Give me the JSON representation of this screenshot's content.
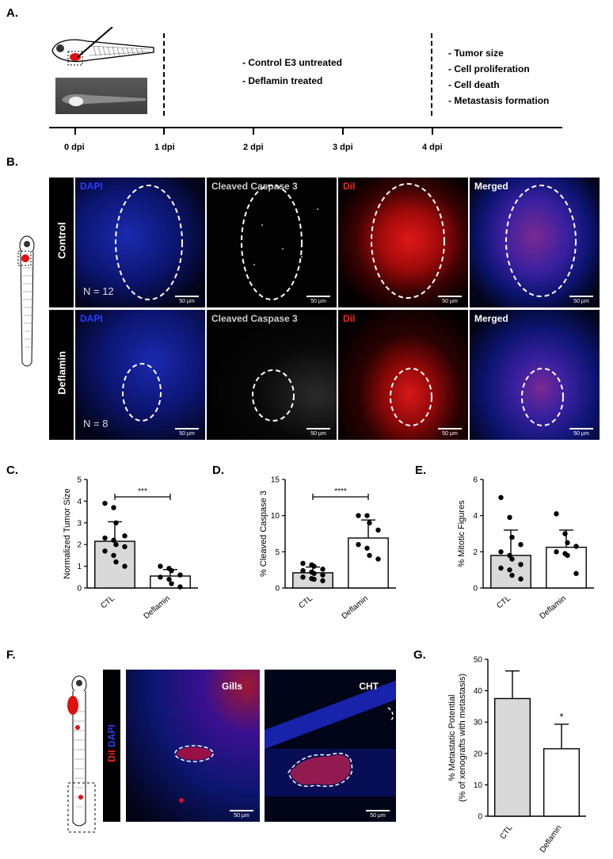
{
  "panels": {
    "A": "A.",
    "B": "B.",
    "C": "C.",
    "D": "D.",
    "E": "E.",
    "F": "F.",
    "G": "G."
  },
  "timeline": {
    "ticks": [
      "0 dpi",
      "1 dpi",
      "2 dpi",
      "3 dpi",
      "4 dpi"
    ],
    "treatments": [
      "- Control E3 untreated",
      "- Deflamin treated"
    ],
    "readouts": [
      "- Tumor size",
      "- Cell proliferation",
      "- Cell death",
      "- Metastasis formation"
    ]
  },
  "imaging": {
    "columns": [
      "DAPI",
      "Cleaved Caspase 3",
      "DiI",
      "Merged"
    ],
    "column_colors": [
      "#2a3cff",
      "#cccccc",
      "#ff2020",
      "#ffffff"
    ],
    "rows": [
      {
        "label": "Control",
        "n": "N = 12"
      },
      {
        "label": "Deflamin",
        "n": "N = 8"
      }
    ],
    "scale_bar": "50 µm"
  },
  "metastasis_images": {
    "stain_red": "DiI",
    "stain_blue": "DAPI",
    "regions": [
      "Gills",
      "CHT"
    ],
    "scale_bar": "50 µm"
  },
  "chart_data": [
    {
      "type": "bar",
      "panel": "C",
      "categories": [
        "CTL",
        "Deflamin"
      ],
      "values": [
        2.15,
        0.55
      ],
      "errors": [
        0.9,
        0.3
      ],
      "points": [
        [
          3.9,
          3.7,
          3.0,
          2.4,
          2.3,
          2.2,
          2.0,
          1.9,
          1.7,
          1.5,
          1.2,
          1.0
        ],
        [
          1.0,
          0.9,
          0.8,
          0.6,
          0.5,
          0.4,
          0.2,
          0.05
        ]
      ],
      "ylabel": "Normalized Tumor Size",
      "ylim": [
        0,
        5
      ],
      "yticks": [
        "0",
        "1",
        "2",
        "3",
        "4",
        "5"
      ],
      "significance": "***",
      "bar_colors": [
        "#d9d9d9",
        "#ffffff"
      ]
    },
    {
      "type": "bar",
      "panel": "D",
      "categories": [
        "CTL",
        "Deflamin"
      ],
      "values": [
        2.1,
        6.9
      ],
      "errors": [
        0.8,
        2.5
      ],
      "points": [
        [
          3.4,
          3.2,
          3.0,
          2.6,
          2.4,
          2.2,
          2.0,
          1.8,
          1.5,
          1.3,
          1.2,
          1.0
        ],
        [
          10.0,
          10.0,
          9.0,
          8.0,
          6.0,
          5.5,
          4.5,
          4.0
        ]
      ],
      "ylabel": "% Cleaved Caspase 3",
      "ylim": [
        0,
        15
      ],
      "yticks": [
        "0",
        "5",
        "10",
        "15"
      ],
      "significance": "****",
      "bar_colors": [
        "#d9d9d9",
        "#ffffff"
      ]
    },
    {
      "type": "bar",
      "panel": "E",
      "categories": [
        "CTL",
        "Deflamin"
      ],
      "values": [
        1.8,
        2.25
      ],
      "errors": [
        1.4,
        0.95
      ],
      "points": [
        [
          5.0,
          3.9,
          2.8,
          2.4,
          2.0,
          1.8,
          1.6,
          1.3,
          1.1,
          1.0,
          0.7,
          0.5
        ],
        [
          4.1,
          3.0,
          2.5,
          2.3,
          2.0,
          1.9,
          1.8,
          0.8
        ]
      ],
      "ylabel": "% Mitotic Figures",
      "ylim": [
        0,
        6
      ],
      "yticks": [
        "0",
        "2",
        "4",
        "6"
      ],
      "significance": "",
      "bar_colors": [
        "#d9d9d9",
        "#ffffff"
      ]
    },
    {
      "type": "bar",
      "panel": "G",
      "categories": [
        "CTL",
        "Deflamin"
      ],
      "values": [
        37.5,
        21.5
      ],
      "errors": [
        8.8,
        7.8
      ],
      "points": [
        [],
        []
      ],
      "ylabel": "% Metastatic Potential",
      "ylabel2": "(% of xenografts with metastasis)",
      "ylim": [
        0,
        50
      ],
      "yticks": [
        "0",
        "10",
        "20",
        "30",
        "40",
        "50"
      ],
      "significance": "*",
      "bar_colors": [
        "#d9d9d9",
        "#ffffff"
      ]
    }
  ]
}
